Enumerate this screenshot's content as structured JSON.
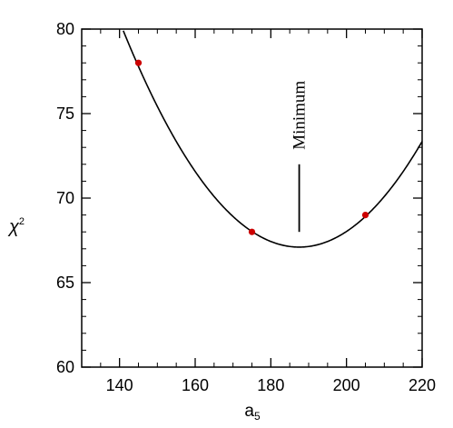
{
  "chart_data": {
    "type": "scatter",
    "xlabel": "a",
    "xlabel_sub": "5",
    "ylabel": "χ",
    "ylabel_sup": "2",
    "xlim": [
      130,
      220
    ],
    "ylim": [
      60,
      80
    ],
    "x_ticks": [
      140,
      160,
      180,
      200,
      220
    ],
    "y_ticks": [
      60,
      65,
      70,
      75,
      80
    ],
    "grid": false,
    "legend": "none",
    "points": [
      {
        "x": 145,
        "y": 78.0
      },
      {
        "x": 175,
        "y": 68.0
      },
      {
        "x": 205,
        "y": 69.0
      }
    ],
    "fit_curve": {
      "form": "quadratic",
      "vertex_x": 187.5,
      "vertex_y": 67.1,
      "a": 0.00592
    },
    "annotation": {
      "text": "Minimum",
      "x": 187.5,
      "y_from": 68.0,
      "y_to": 72.0
    },
    "colors": {
      "points": "#cc0000",
      "curve": "#000000",
      "axes": "#000000"
    }
  }
}
